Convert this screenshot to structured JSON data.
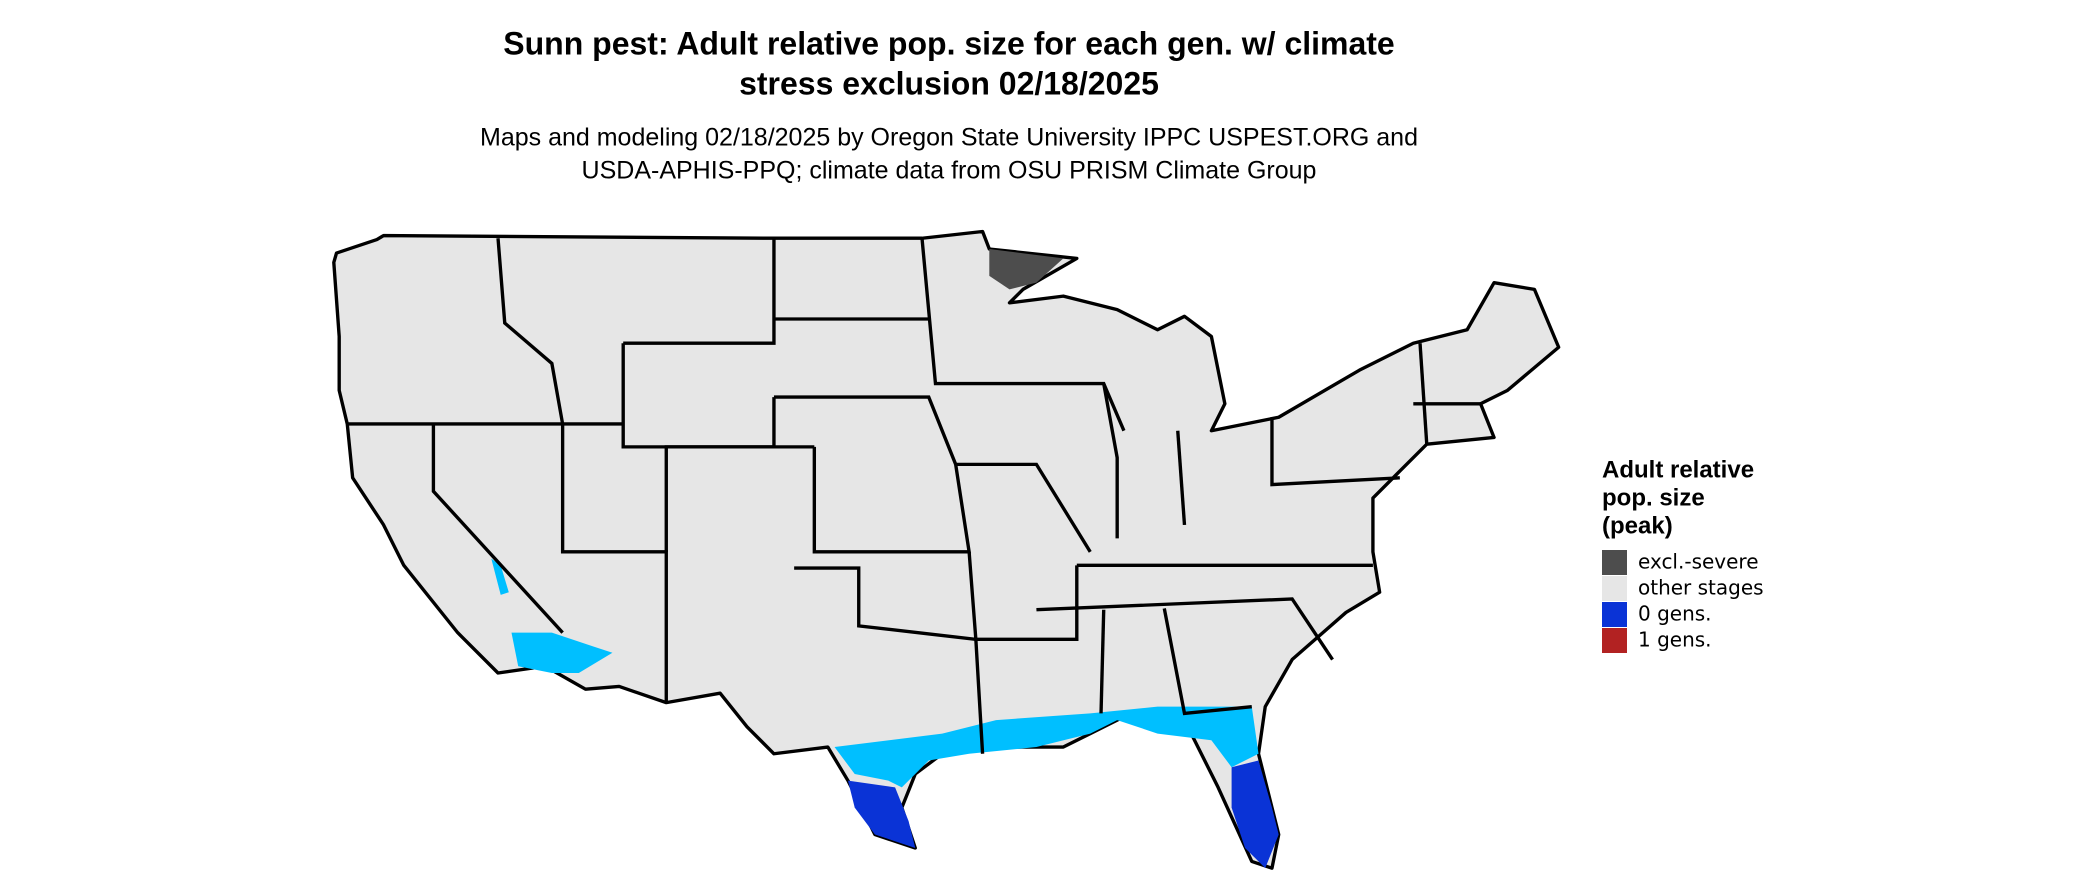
{
  "header": {
    "title": [
      "Sunn pest: Adult relative pop. size for each gen. w/ climate",
      "stress exclusion 02/18/2025"
    ],
    "subtitle": [
      "Maps and modeling 02/18/2025 by Oregon State University IPPC USPEST.ORG and",
      "USDA-APHIS-PPQ; climate data from OSU PRISM Climate Group"
    ]
  },
  "legend": {
    "title": [
      "Adult relative",
      "pop. size",
      "(peak)"
    ],
    "items": [
      {
        "label": "excl.-severe",
        "color": "#4d4d4d"
      },
      {
        "label": "other stages",
        "color": "#e6e6e6"
      },
      {
        "label": "0 gens.",
        "color": "#0a33d6"
      },
      {
        "label": "1 gens.",
        "color": "#b22222"
      }
    ]
  }
}
